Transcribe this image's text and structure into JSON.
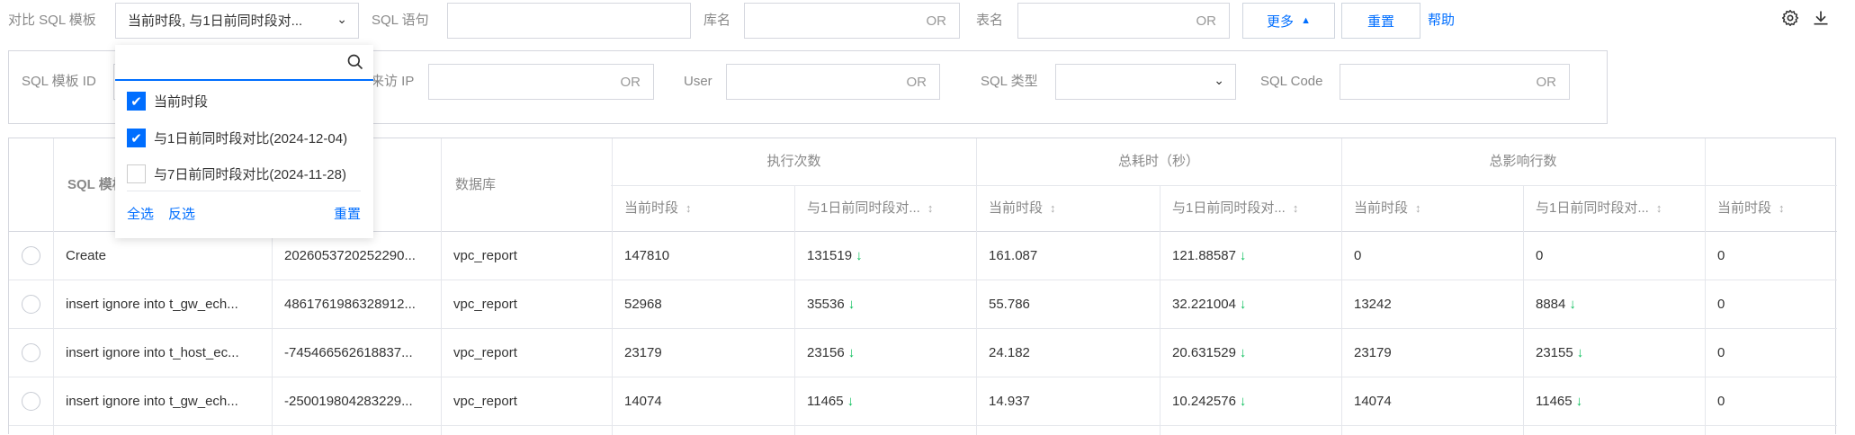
{
  "toolbar": {
    "compare_label": "对比 SQL 模板",
    "compare_value": "当前时段, 与1日前同时段对...",
    "sql_label": "SQL 语句",
    "db_label": "库名",
    "db_suffix": "OR",
    "table_label": "表名",
    "table_suffix": "OR",
    "more_label": "更多",
    "reset_label": "重置",
    "help_label": "帮助"
  },
  "filters": {
    "template_id_label": "SQL 模板 ID",
    "ip_label": "来访 IP",
    "ip_suffix": "OR",
    "user_label": "User",
    "user_suffix": "OR",
    "sql_type_label": "SQL 类型",
    "sql_code_label": "SQL Code",
    "sql_code_suffix": "OR"
  },
  "dropdown": {
    "search_placeholder": "",
    "options": [
      {
        "label": "当前时段",
        "checked": true
      },
      {
        "label": "与1日前同时段对比(2024-12-04)",
        "checked": true
      },
      {
        "label": "与7日前同时段对比(2024-11-28)",
        "checked": false
      }
    ],
    "select_all": "全选",
    "invert": "反选",
    "reset": "重置"
  },
  "table": {
    "col_template": "SQL 模板",
    "col_database": "数据库",
    "groups": [
      "执行次数",
      "总耗时（秒）",
      "总影响行数"
    ],
    "sub_current": "当前时段",
    "sub_compare": "与1日前同时段对...",
    "rows": [
      {
        "template": "Create",
        "id": "2026053720252290...",
        "db": "vpc_report",
        "exec_cur": "147810",
        "exec_cmp": "131519",
        "time_cur": "161.087",
        "time_cmp": "121.88587",
        "rows_cur": "0",
        "rows_cmp": "0",
        "last": "0"
      },
      {
        "template": "insert ignore into t_gw_ech...",
        "id": "4861761986328912...",
        "db": "vpc_report",
        "exec_cur": "52968",
        "exec_cmp": "35536",
        "time_cur": "55.786",
        "time_cmp": "32.221004",
        "rows_cur": "13242",
        "rows_cmp": "8884",
        "last": "0"
      },
      {
        "template": "insert ignore into t_host_ec...",
        "id": "-745466562618837...",
        "db": "vpc_report",
        "exec_cur": "23179",
        "exec_cmp": "23156",
        "time_cur": "24.182",
        "time_cmp": "20.631529",
        "rows_cur": "23179",
        "rows_cmp": "23155",
        "last": "0"
      },
      {
        "template": "insert ignore into t_gw_ech...",
        "id": "-250019804283229...",
        "db": "vpc_report",
        "exec_cur": "14074",
        "exec_cmp": "11465",
        "time_cur": "14.937",
        "time_cmp": "10.242576",
        "rows_cur": "14074",
        "rows_cmp": "11465",
        "last": "0"
      }
    ]
  },
  "colors": {
    "accent": "#006eff",
    "down_arrow": "#0abf5b"
  }
}
